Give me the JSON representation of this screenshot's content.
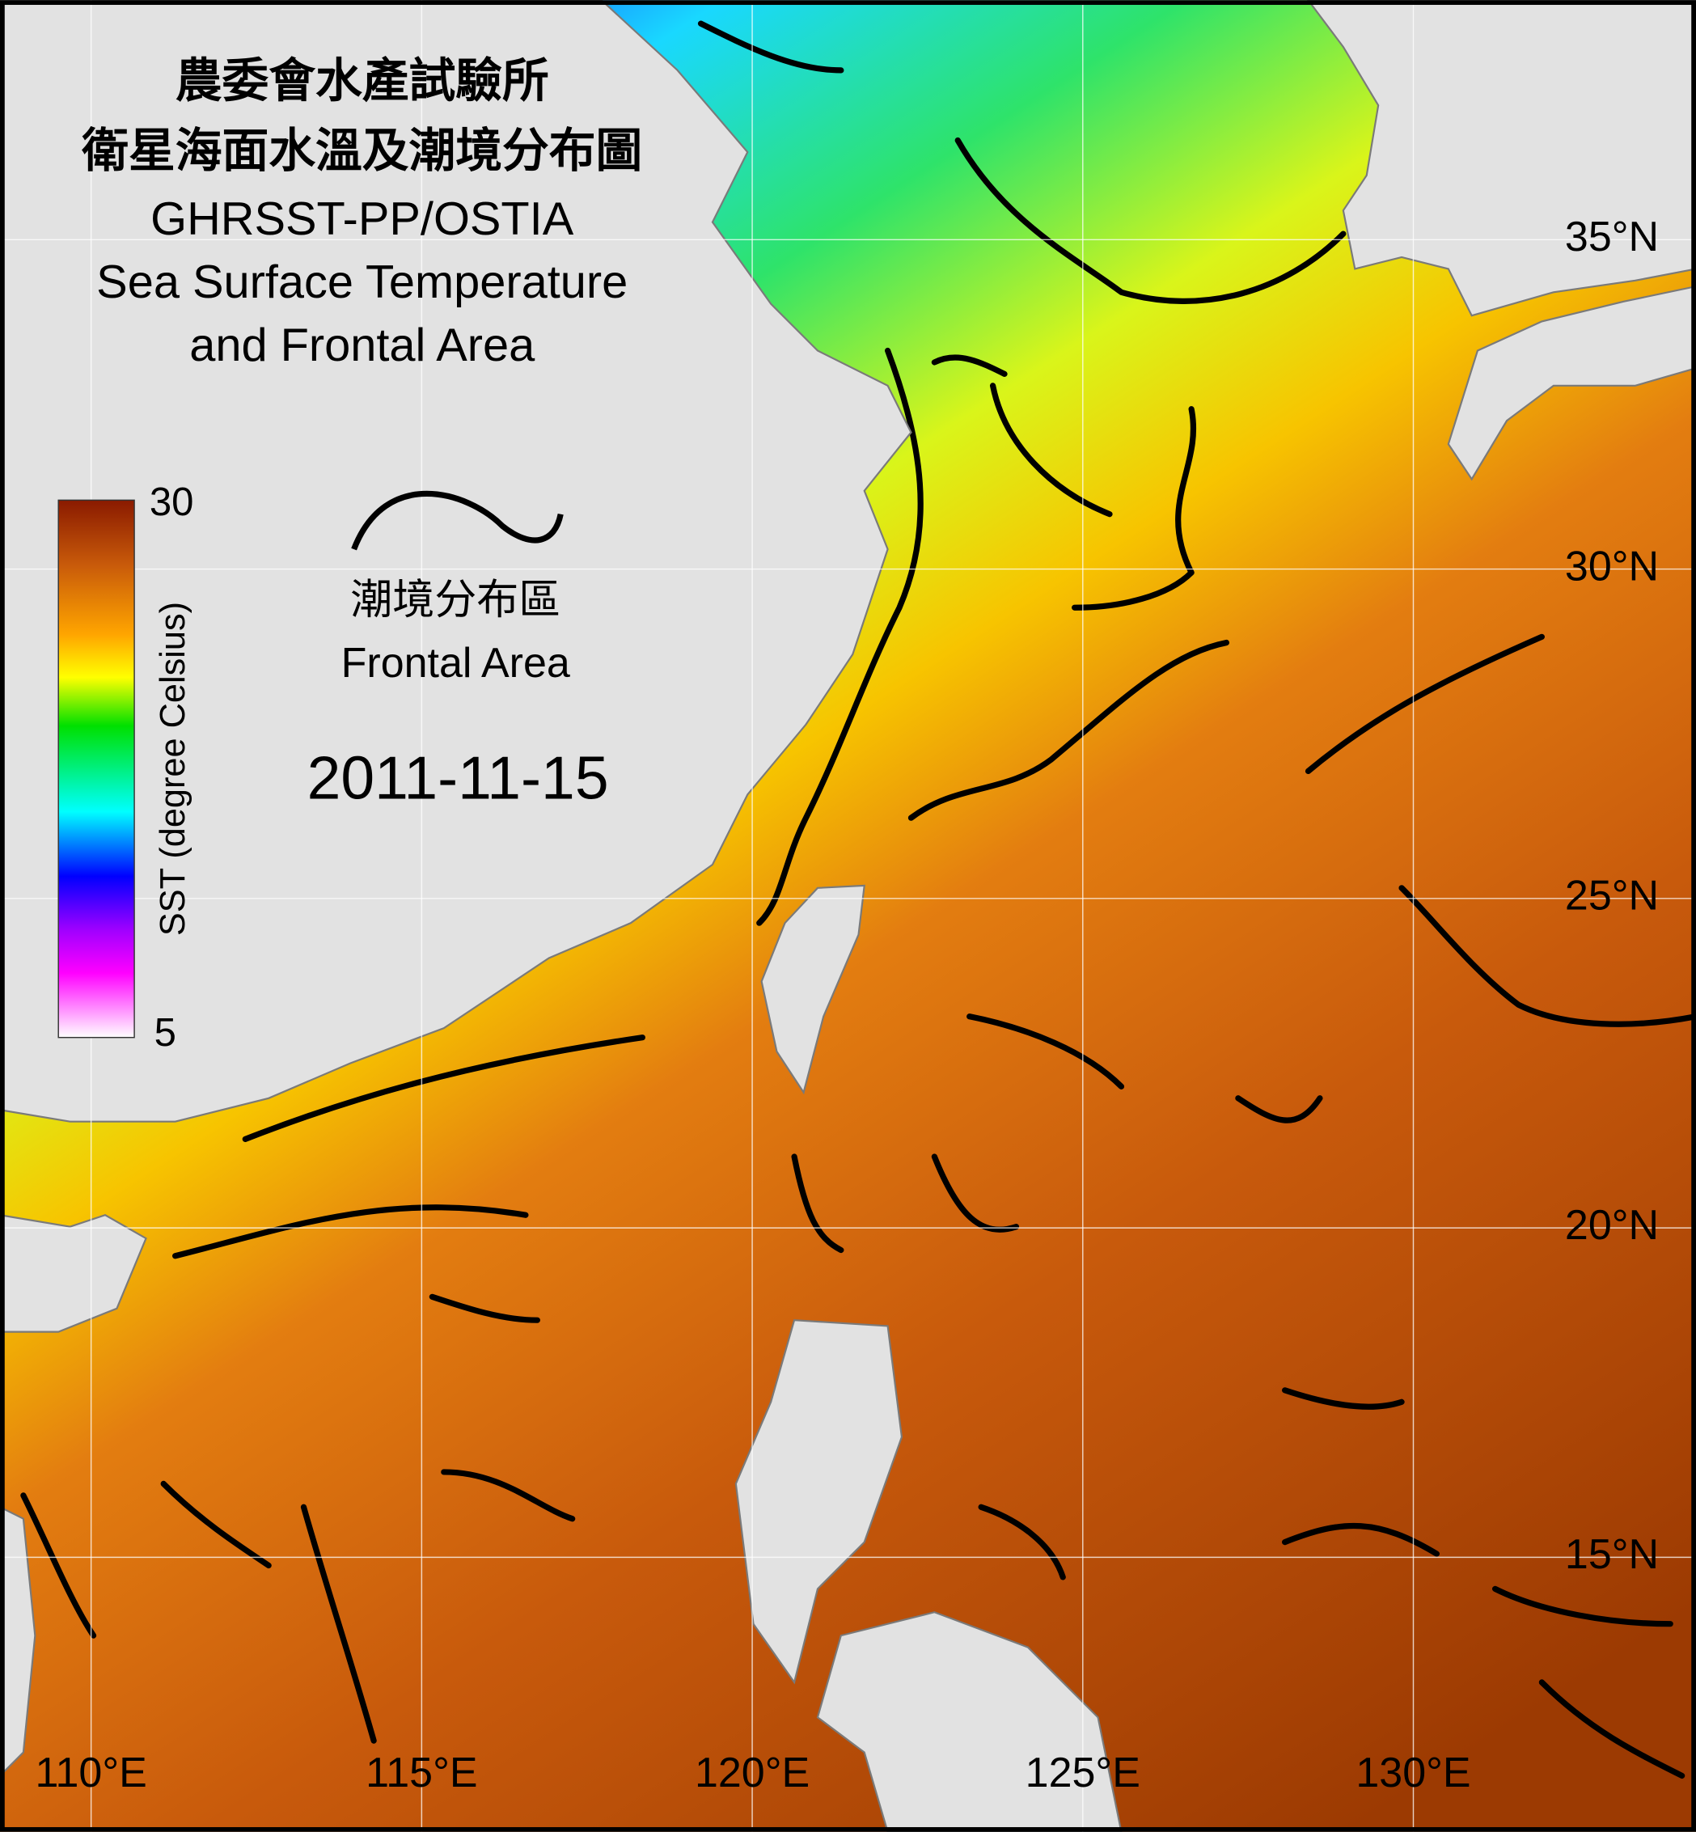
{
  "title_lines": [
    "農委會水產試驗所",
    "衛星海面水溫及潮境分布圖",
    "GHRSST-PP/OSTIA",
    "Sea Surface Temperature",
    "and Frontal Area"
  ],
  "colorbar": {
    "max": 30,
    "min": 5,
    "label": "SST (degree Celsius)"
  },
  "legend": {
    "zh": "潮境分布區",
    "en": "Frontal Area"
  },
  "date": "2011-11-15",
  "lat_labels": [
    "35°N",
    "30°N",
    "25°N",
    "20°N",
    "15°N"
  ],
  "lon_labels": [
    "110°E",
    "115°E",
    "120°E",
    "125°E",
    "130°E"
  ]
}
